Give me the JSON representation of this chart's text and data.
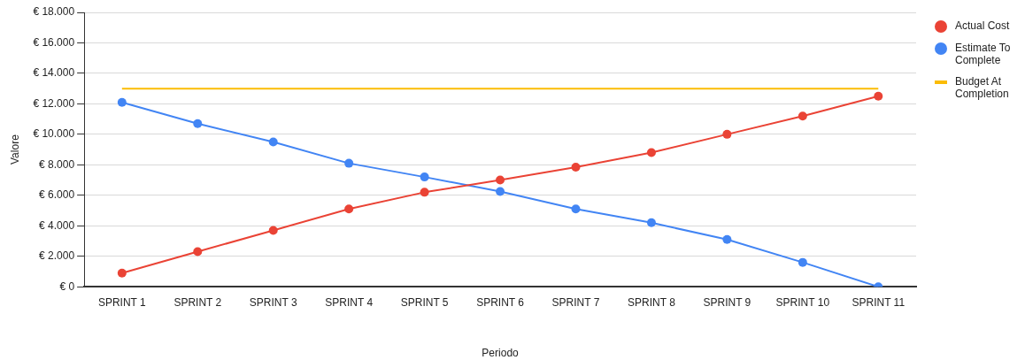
{
  "chart_data": {
    "type": "line",
    "xlabel": "Periodo",
    "ylabel": "Valore",
    "categories": [
      "SPRINT 1",
      "SPRINT 2",
      "SPRINT 3",
      "SPRINT 4",
      "SPRINT 5",
      "SPRINT 6",
      "SPRINT 7",
      "SPRINT 8",
      "SPRINT 9",
      "SPRINT 10",
      "SPRINT 11"
    ],
    "series": [
      {
        "name": "Actual Cost",
        "color": "#ea4335",
        "values": [
          900,
          2300,
          3700,
          5100,
          6200,
          7000,
          7850,
          8800,
          10000,
          11200,
          12500
        ]
      },
      {
        "name": "Estimate To Complete",
        "color": "#4285f4",
        "values": [
          12100,
          10700,
          9500,
          8100,
          7200,
          6250,
          5100,
          4200,
          3100,
          1600,
          0
        ]
      },
      {
        "name": "Budget At Completion",
        "color": "#fbbc04",
        "marker": "none",
        "values": [
          13000,
          13000,
          13000,
          13000,
          13000,
          13000,
          13000,
          13000,
          13000,
          13000,
          13000
        ]
      }
    ],
    "ylim": [
      0,
      18000
    ],
    "yticks": [
      {
        "value": 0,
        "label": "€ 0"
      },
      {
        "value": 2000,
        "label": "€ 2.000"
      },
      {
        "value": 4000,
        "label": "€ 4.000"
      },
      {
        "value": 6000,
        "label": "€ 6.000"
      },
      {
        "value": 8000,
        "label": "€ 8.000"
      },
      {
        "value": 10000,
        "label": "€ 10.000"
      },
      {
        "value": 12000,
        "label": "€ 12.000"
      },
      {
        "value": 14000,
        "label": "€ 14.000"
      },
      {
        "value": 16000,
        "label": "€ 16.000"
      },
      {
        "value": 18000,
        "label": "€ 18.000"
      }
    ],
    "grid": "y",
    "legend": "right",
    "marker": "circle",
    "line_style": "solid"
  }
}
